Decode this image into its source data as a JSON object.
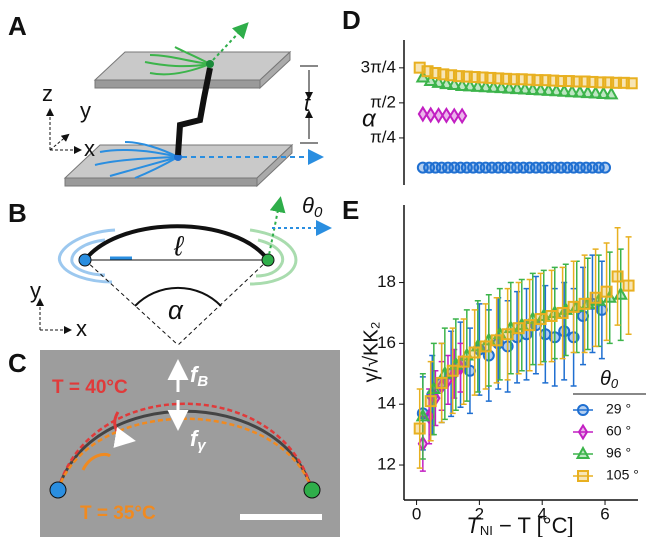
{
  "panels": {
    "A": "A",
    "B": "B",
    "C": "C",
    "D": "D",
    "E": "E"
  },
  "diagram_a": {
    "z": "z",
    "y": "y",
    "x": "x",
    "t": "t"
  },
  "diagram_b": {
    "y": "y",
    "x": "x",
    "l": "ℓ",
    "alpha": "α",
    "theta_main": "θ",
    "theta_sub": "0"
  },
  "photo_c": {
    "hot": "T = 40°C",
    "cold": "T = 35°C",
    "fb_main": "f",
    "fb_sub": "B",
    "fg_main": "f",
    "fg_sub": "γ"
  },
  "chart_data": [
    {
      "type": "scatter",
      "y_label": "α",
      "xlim": [
        -0.4,
        7.05
      ],
      "ylim": [
        -0.27,
        2.98
      ],
      "yticks": [
        {
          "value": 0.785,
          "label": "π/4"
        },
        {
          "value": 1.571,
          "label": "π/2"
        },
        {
          "value": 2.356,
          "label": "3π/4"
        }
      ],
      "series": [
        {
          "name": "29 °",
          "color": "#1f6fd1",
          "marker": "circle",
          "x": [
            0.2,
            0.4,
            0.6,
            0.8,
            1.0,
            1.2,
            1.4,
            1.6,
            1.8,
            2.0,
            2.2,
            2.4,
            2.6,
            2.8,
            3.0,
            3.2,
            3.4,
            3.6,
            3.8,
            4.0,
            4.2,
            4.4,
            4.6,
            4.8,
            5.0,
            5.2,
            5.4,
            5.6,
            5.8,
            6.0
          ],
          "values": [
            0.12,
            0.12,
            0.12,
            0.12,
            0.12,
            0.12,
            0.12,
            0.12,
            0.12,
            0.12,
            0.12,
            0.12,
            0.12,
            0.12,
            0.12,
            0.12,
            0.12,
            0.12,
            0.12,
            0.12,
            0.12,
            0.12,
            0.12,
            0.12,
            0.12,
            0.12,
            0.12,
            0.12,
            0.12,
            0.12
          ]
        },
        {
          "name": "60 °",
          "color": "#c21fc2",
          "marker": "diamond",
          "x": [
            0.2,
            0.45,
            0.7,
            0.95,
            1.2,
            1.45
          ],
          "values": [
            1.32,
            1.3,
            1.29,
            1.29,
            1.28,
            1.28
          ]
        },
        {
          "name": "96 °",
          "color": "#3cb44b",
          "marker": "triangle",
          "x": [
            0.2,
            0.45,
            0.7,
            0.95,
            1.2,
            1.45,
            1.7,
            1.95,
            2.2,
            2.45,
            2.7,
            2.95,
            3.2,
            3.45,
            3.7,
            3.95,
            4.2,
            4.45,
            4.7,
            4.95,
            5.2,
            5.45,
            5.7,
            5.95,
            6.2
          ],
          "values": [
            2.14,
            2.06,
            2.02,
            1.99,
            1.97,
            1.95,
            1.94,
            1.93,
            1.92,
            1.91,
            1.9,
            1.89,
            1.88,
            1.87,
            1.86,
            1.85,
            1.84,
            1.83,
            1.82,
            1.81,
            1.8,
            1.79,
            1.78,
            1.77,
            1.76
          ]
        },
        {
          "name": "105 °",
          "color": "#e8b020",
          "marker": "square",
          "x": [
            0.1,
            0.35,
            0.6,
            0.85,
            1.1,
            1.35,
            1.6,
            1.85,
            2.1,
            2.35,
            2.6,
            2.85,
            3.1,
            3.35,
            3.6,
            3.85,
            4.1,
            4.35,
            4.6,
            4.85,
            5.1,
            5.35,
            5.6,
            5.85,
            6.1,
            6.35,
            6.6,
            6.85
          ],
          "values": [
            2.36,
            2.28,
            2.24,
            2.21,
            2.19,
            2.17,
            2.16,
            2.15,
            2.14,
            2.13,
            2.12,
            2.11,
            2.1,
            2.1,
            2.09,
            2.08,
            2.08,
            2.07,
            2.06,
            2.06,
            2.05,
            2.05,
            2.04,
            2.03,
            2.03,
            2.02,
            2.02,
            2.01
          ]
        }
      ]
    },
    {
      "type": "scatter",
      "y_label": "γ/√KK₂",
      "x_label": {
        "main": "T",
        "sub": "NI",
        "rest": " − T [°C]"
      },
      "xlim": [
        -0.4,
        7.05
      ],
      "ylim": [
        10.85,
        20.55
      ],
      "xticks": [
        0,
        2,
        4,
        6
      ],
      "yticks": [
        12,
        14,
        16,
        18
      ],
      "legend_title": {
        "main": "θ",
        "sub": "0"
      },
      "legend": "lower right",
      "series": [
        {
          "name": "29 °",
          "color": "#1f6fd1",
          "marker": "circle",
          "x": [
            0.2,
            0.5,
            0.8,
            1.1,
            1.4,
            1.7,
            2.0,
            2.3,
            2.6,
            2.9,
            3.2,
            3.5,
            3.8,
            4.1,
            4.4,
            4.7,
            5.0,
            5.3,
            5.6,
            5.9
          ],
          "values": [
            13.7,
            14.3,
            14.7,
            15.0,
            15.3,
            15.1,
            15.8,
            15.6,
            16.0,
            15.9,
            16.2,
            16.3,
            16.6,
            16.3,
            16.2,
            16.4,
            16.2,
            16.9,
            17.3,
            17.1
          ],
          "errors": [
            1.2,
            1.3,
            1.3,
            1.4,
            1.4,
            1.4,
            1.5,
            1.5,
            1.5,
            1.5,
            1.5,
            1.5,
            1.6,
            1.6,
            1.6,
            1.6,
            1.6,
            1.6,
            1.6,
            1.6
          ]
        },
        {
          "name": "60 °",
          "color": "#c21fc2",
          "marker": "diamond",
          "x": [
            0.2,
            0.4,
            0.6,
            0.8,
            1.0,
            1.2,
            1.4
          ],
          "values": [
            12.7,
            13.6,
            14.2,
            14.6,
            14.8,
            15.0,
            15.2
          ],
          "errors": [
            0.9,
            0.9,
            0.9,
            0.8,
            0.8,
            0.8,
            0.8
          ]
        },
        {
          "name": "96 °",
          "color": "#3cb44b",
          "marker": "triangle",
          "x": [
            0.2,
            0.55,
            0.9,
            1.25,
            1.6,
            1.95,
            2.3,
            2.65,
            3.0,
            3.35,
            3.7,
            4.05,
            4.4,
            4.75,
            5.1,
            5.45,
            5.8,
            6.15,
            6.5
          ],
          "values": [
            13.6,
            14.5,
            15.0,
            15.3,
            15.6,
            15.9,
            16.1,
            16.3,
            16.5,
            16.6,
            16.8,
            16.9,
            17.0,
            17.1,
            17.2,
            17.3,
            17.4,
            17.5,
            17.6
          ],
          "errors": [
            1.4,
            1.5,
            1.5,
            1.5,
            1.5,
            1.5,
            1.5,
            1.5,
            1.5,
            1.5,
            1.5,
            1.5,
            1.5,
            1.5,
            1.5,
            1.5,
            1.5,
            1.5,
            1.5
          ]
        },
        {
          "name": "105 °",
          "color": "#e8b020",
          "marker": "square",
          "x": [
            0.1,
            0.45,
            0.8,
            1.15,
            1.5,
            1.85,
            2.2,
            2.55,
            2.9,
            3.25,
            3.6,
            3.95,
            4.3,
            4.65,
            5.0,
            5.35,
            5.7,
            6.05,
            6.4,
            6.75
          ],
          "values": [
            13.2,
            14.1,
            14.7,
            15.1,
            15.4,
            15.7,
            15.9,
            16.1,
            16.3,
            16.5,
            16.6,
            16.8,
            16.9,
            17.0,
            17.2,
            17.3,
            17.5,
            17.7,
            18.2,
            17.9
          ],
          "errors": [
            1.3,
            1.3,
            1.3,
            1.4,
            1.4,
            1.4,
            1.4,
            1.4,
            1.5,
            1.5,
            1.5,
            1.5,
            1.5,
            1.5,
            1.5,
            1.6,
            1.6,
            1.6,
            1.6,
            1.6
          ]
        }
      ]
    }
  ]
}
